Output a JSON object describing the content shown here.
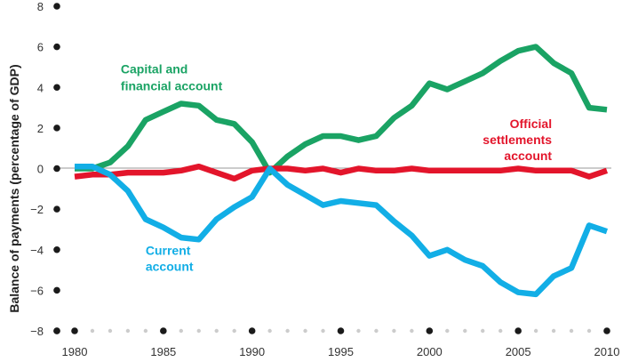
{
  "chart_data": {
    "type": "line",
    "title": "",
    "xlabel": "",
    "ylabel": "Balance of payments (percentage of GDP)",
    "xlim": [
      1980,
      2010
    ],
    "ylim": [
      -8,
      8
    ],
    "x_ticks": [
      "1980",
      "1985",
      "1990",
      "1995",
      "2000",
      "2005",
      "2010"
    ],
    "y_ticks": [
      "8",
      "6",
      "4",
      "2",
      "0",
      "−2",
      "−4",
      "−6",
      "−8"
    ],
    "x": [
      1980,
      1981,
      1982,
      1983,
      1984,
      1985,
      1986,
      1987,
      1988,
      1989,
      1990,
      1991,
      1992,
      1993,
      1994,
      1995,
      1996,
      1997,
      1998,
      1999,
      2000,
      2001,
      2002,
      2003,
      2004,
      2005,
      2006,
      2007,
      2008,
      2009,
      2010
    ],
    "series": [
      {
        "name": "Capital and financial account",
        "label_lines": [
          "Capital and",
          "financial account"
        ],
        "color": "#1aa364",
        "values": [
          0.0,
          0.0,
          0.3,
          1.1,
          2.4,
          2.8,
          3.2,
          3.1,
          2.4,
          2.2,
          1.3,
          -0.2,
          0.6,
          1.2,
          1.6,
          1.6,
          1.4,
          1.6,
          2.5,
          3.1,
          4.2,
          3.9,
          4.3,
          4.7,
          5.3,
          5.8,
          6.0,
          5.2,
          4.7,
          3.0,
          2.9
        ]
      },
      {
        "name": "Official settlements account",
        "label_lines": [
          "Official",
          "settlements",
          "account"
        ],
        "color": "#e3152b",
        "values": [
          -0.4,
          -0.3,
          -0.3,
          -0.2,
          -0.2,
          -0.2,
          -0.1,
          0.1,
          -0.2,
          -0.5,
          -0.1,
          0.0,
          0.0,
          -0.1,
          0.0,
          -0.2,
          0.0,
          -0.1,
          -0.1,
          0.0,
          -0.1,
          -0.1,
          -0.1,
          -0.1,
          -0.1,
          0.0,
          -0.1,
          -0.1,
          -0.1,
          -0.4,
          -0.1
        ]
      },
      {
        "name": "Current account",
        "label_lines": [
          "Current",
          "account"
        ],
        "color": "#12aee6",
        "values": [
          0.1,
          0.1,
          -0.3,
          -1.1,
          -2.5,
          -2.9,
          -3.4,
          -3.5,
          -2.5,
          -1.9,
          -1.4,
          0.0,
          -0.8,
          -1.3,
          -1.8,
          -1.6,
          -1.7,
          -1.8,
          -2.6,
          -3.3,
          -4.3,
          -4.0,
          -4.5,
          -4.8,
          -5.6,
          -6.1,
          -6.2,
          -5.3,
          -4.9,
          -2.8,
          -3.1
        ]
      }
    ],
    "grid": false,
    "legend": "none (series labelled directly on the chart)"
  }
}
